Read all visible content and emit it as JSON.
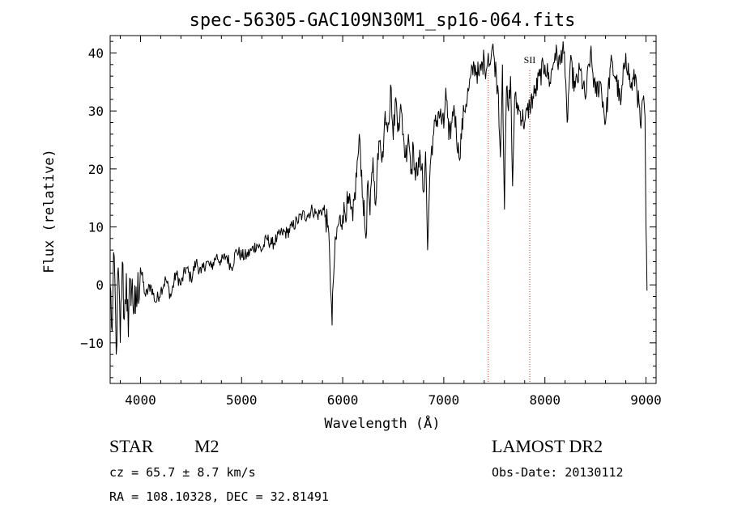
{
  "chart_data": {
    "type": "line",
    "title": "spec-56305-GAC109N30M1_sp16-064.fits",
    "xlabel": "Wavelength (Å)",
    "ylabel": "Flux (relative)",
    "xlim": [
      3700,
      9100
    ],
    "ylim": [
      -17,
      43
    ],
    "xticks": [
      4000,
      5000,
      6000,
      7000,
      8000,
      9000
    ],
    "yticks": [
      -10,
      0,
      10,
      20,
      30,
      40
    ],
    "ytick_labels": [
      "−10",
      "0",
      "10",
      "20",
      "30",
      "40"
    ],
    "grid": false,
    "series": [
      {
        "x": [
          3700,
          3720,
          3740,
          3760,
          3780,
          3800,
          3820,
          3840,
          3860,
          3880,
          3900,
          3950,
          4000,
          4050,
          4100,
          4150,
          4200,
          4250,
          4300,
          4350,
          4400,
          4450,
          4500,
          4550,
          4600,
          4650,
          4700,
          4750,
          4800,
          4850,
          4900,
          4950,
          5000,
          5050,
          5100,
          5150,
          5200,
          5250,
          5300,
          5350,
          5400,
          5450,
          5500,
          5550,
          5600,
          5650,
          5700,
          5750,
          5800,
          5830,
          5850,
          5870,
          5885,
          5895,
          5905,
          5920,
          5950,
          6000,
          6050,
          6080,
          6100,
          6150,
          6170,
          6200,
          6230,
          6250,
          6270,
          6300,
          6320,
          6340,
          6370,
          6400,
          6420,
          6450,
          6480,
          6500,
          6520,
          6550,
          6580,
          6600,
          6620,
          6650,
          6680,
          6700,
          6720,
          6750,
          6780,
          6800,
          6820,
          6840,
          6860,
          6880,
          6900,
          6950,
          7000,
          7020,
          7050,
          7080,
          7100,
          7150,
          7200,
          7250,
          7300,
          7350,
          7400,
          7420,
          7440,
          7460,
          7480,
          7500,
          7520,
          7540,
          7560,
          7580,
          7600,
          7620,
          7640,
          7660,
          7680,
          7700,
          7750,
          7800,
          7850,
          7900,
          7950,
          8000,
          8050,
          8100,
          8150,
          8180,
          8200,
          8220,
          8250,
          8300,
          8350,
          8400,
          8450,
          8500,
          8550,
          8600,
          8650,
          8700,
          8750,
          8800,
          8850,
          8900,
          8950,
          8970,
          8990,
          9000,
          9010
        ],
        "y": [
          0,
          -8,
          5,
          -12,
          3,
          -10,
          4,
          -6,
          2,
          -9,
          1,
          -5,
          3,
          -2,
          0,
          -3,
          -1,
          1,
          -2,
          2,
          0,
          3,
          1,
          4,
          2,
          4,
          3,
          5,
          4,
          5,
          3,
          6,
          5,
          5,
          6,
          7,
          6,
          8,
          7,
          8,
          9,
          9,
          10,
          11,
          12,
          12,
          13,
          12,
          13,
          12,
          10,
          6,
          -2,
          -7,
          0,
          5,
          10,
          12,
          14,
          13,
          11,
          22,
          25,
          15,
          8,
          18,
          12,
          22,
          14,
          20,
          25,
          22,
          30,
          28,
          34,
          25,
          32,
          28,
          30,
          26,
          22,
          26,
          20,
          24,
          18,
          22,
          20,
          16,
          23,
          6,
          18,
          24,
          26,
          30,
          27,
          34,
          25,
          28,
          31,
          22,
          30,
          34,
          38,
          36,
          39,
          37,
          40,
          38,
          41,
          39,
          36,
          33,
          22,
          38,
          13,
          34,
          30,
          36,
          17,
          32,
          30,
          28,
          31,
          33,
          36,
          38,
          35,
          40,
          38,
          42,
          36,
          28,
          38,
          34,
          37,
          32,
          40,
          33,
          35,
          28,
          38,
          36,
          31,
          40,
          34,
          36,
          27,
          32,
          29,
          10,
          -1
        ]
      }
    ],
    "annotations": [
      {
        "type": "vline",
        "x": 7440,
        "label": ""
      },
      {
        "type": "vline",
        "x": 7850,
        "label": "SII"
      }
    ]
  },
  "info": {
    "class_label": "STAR",
    "subclass_label": "M2",
    "survey": "LAMOST DR2",
    "cz_line": "cz = 65.7 ± 8.7 km/s",
    "obs_date": "Obs-Date: 20130112",
    "coords": "RA = 108.10328, DEC =  32.81491"
  }
}
